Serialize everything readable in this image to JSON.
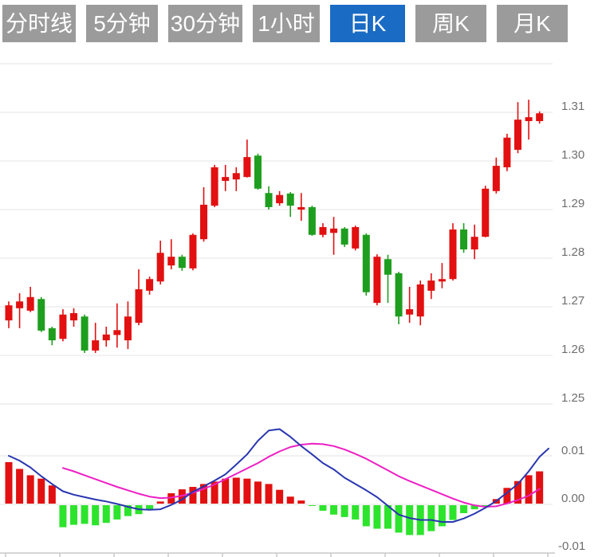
{
  "tabs": [
    {
      "id": "timeshare",
      "label": "分时线",
      "active": false
    },
    {
      "id": "5min",
      "label": "5分钟",
      "active": false
    },
    {
      "id": "30min",
      "label": "30分钟",
      "active": false
    },
    {
      "id": "1hour",
      "label": "1小时",
      "active": false
    },
    {
      "id": "daily",
      "label": "日K",
      "active": true
    },
    {
      "id": "weekly",
      "label": "周K",
      "active": false
    },
    {
      "id": "monthly",
      "label": "月K",
      "active": false
    }
  ],
  "colors": {
    "up_red": "#e21010",
    "down_green": "#1e9e1e",
    "macd_bar_up": "#e21010",
    "macd_bar_down": "#2ce42c",
    "dif_line_blue": "#2936b0",
    "dea_line_magenta": "#ed1fc4",
    "grid": "#e3e3e3",
    "axis_line": "#c8c8c8",
    "axis_text": "#6e6e6e",
    "tab_bg": "#9b9b9b",
    "tab_active_bg": "#1a6bc4",
    "tab_text": "#ffffff"
  },
  "chart_data": {
    "type": "candlestick",
    "title": "",
    "price_axis": {
      "ticks": [
        "1.31",
        "1.30",
        "1.29",
        "1.28",
        "1.27",
        "1.26",
        "1.25"
      ],
      "min": 1.25,
      "max": 1.32,
      "grid": true
    },
    "macd_axis": {
      "ticks": [
        "0.01",
        "0.00",
        "-0.01"
      ],
      "min": -0.01,
      "max": 0.01,
      "grid": true
    },
    "candles_ohlc": [
      [
        1.2672,
        1.2711,
        1.2656,
        1.2703
      ],
      [
        1.2697,
        1.2728,
        1.2656,
        1.2711
      ],
      [
        1.2692,
        1.2741,
        1.2689,
        1.272
      ],
      [
        1.2716,
        1.272,
        1.2648,
        1.2651
      ],
      [
        1.2656,
        1.2659,
        1.2621,
        1.2631
      ],
      [
        1.2634,
        1.2695,
        1.2629,
        1.2684
      ],
      [
        1.2672,
        1.2697,
        1.2659,
        1.2687
      ],
      [
        1.268,
        1.2684,
        1.2605,
        1.261
      ],
      [
        1.261,
        1.2667,
        1.2605,
        1.2631
      ],
      [
        1.2631,
        1.2659,
        1.2618,
        1.2643
      ],
      [
        1.2642,
        1.2707,
        1.2616,
        1.2652
      ],
      [
        1.2631,
        1.2711,
        1.2613,
        1.268
      ],
      [
        1.2667,
        1.2777,
        1.2662,
        1.2736
      ],
      [
        1.2733,
        1.2762,
        1.2725,
        1.2757
      ],
      [
        1.2752,
        1.2836,
        1.2746,
        1.2811
      ],
      [
        1.2785,
        1.2839,
        1.2777,
        1.2803
      ],
      [
        1.2803,
        1.2807,
        1.2774,
        1.278
      ],
      [
        1.2779,
        1.2851,
        1.2775,
        1.2848
      ],
      [
        1.2839,
        1.2946,
        1.2834,
        1.291
      ],
      [
        1.2908,
        1.2992,
        1.2905,
        1.2987
      ],
      [
        1.2959,
        1.2992,
        1.2938,
        1.2967
      ],
      [
        1.2962,
        1.2987,
        1.2938,
        1.2975
      ],
      [
        1.2967,
        1.3044,
        1.2966,
        1.3008
      ],
      [
        1.3011,
        1.3015,
        1.2941,
        1.2943
      ],
      [
        1.2934,
        1.2948,
        1.29,
        1.2905
      ],
      [
        1.2913,
        1.2938,
        1.2908,
        1.293
      ],
      [
        1.2933,
        1.2936,
        1.2885,
        1.2908
      ],
      [
        1.29,
        1.2934,
        1.2877,
        1.2905
      ],
      [
        1.2905,
        1.2908,
        1.2846,
        1.2848
      ],
      [
        1.2848,
        1.2872,
        1.2843,
        1.2864
      ],
      [
        1.2852,
        1.2885,
        1.2807,
        1.2861
      ],
      [
        1.2861,
        1.2864,
        1.2823,
        1.2828
      ],
      [
        1.282,
        1.2867,
        1.2816,
        1.2864
      ],
      [
        1.2848,
        1.2851,
        1.2723,
        1.273
      ],
      [
        1.2708,
        1.2808,
        1.2703,
        1.2803
      ],
      [
        1.2798,
        1.2807,
        1.2708,
        1.2766
      ],
      [
        1.2769,
        1.2772,
        1.2664,
        1.268
      ],
      [
        1.2684,
        1.2741,
        1.2667,
        1.2695
      ],
      [
        1.268,
        1.2754,
        1.2662,
        1.2746
      ],
      [
        1.2733,
        1.2769,
        1.2716,
        1.2754
      ],
      [
        1.2752,
        1.279,
        1.2738,
        1.2757
      ],
      [
        1.2757,
        1.2872,
        1.2754,
        1.2859
      ],
      [
        1.2859,
        1.2872,
        1.2811,
        1.2818
      ],
      [
        1.2818,
        1.2869,
        1.2798,
        1.2844
      ],
      [
        1.2844,
        1.2949,
        1.2843,
        1.2943
      ],
      [
        1.2938,
        1.3007,
        1.2933,
        1.299
      ],
      [
        1.2987,
        1.3056,
        1.2979,
        1.3048
      ],
      [
        1.3023,
        1.3121,
        1.3016,
        1.3085
      ],
      [
        1.3082,
        1.3126,
        1.3044,
        1.309
      ],
      [
        1.3082,
        1.3102,
        1.3077,
        1.3098
      ]
    ],
    "macd": {
      "hist": [
        0.0087,
        0.0073,
        0.006,
        0.0053,
        0.0039,
        -0.0047,
        -0.0042,
        -0.004,
        -0.0043,
        -0.0038,
        -0.0031,
        -0.0024,
        -0.002,
        -0.001,
        0.0006,
        0.0023,
        0.0031,
        0.0036,
        0.0042,
        0.0047,
        0.0053,
        0.0055,
        0.0053,
        0.0047,
        0.0042,
        0.003,
        0.0016,
        0.0008,
        -0.0002,
        -0.0013,
        -0.0021,
        -0.0026,
        -0.0031,
        -0.0045,
        -0.005,
        -0.005,
        -0.0058,
        -0.0063,
        -0.0063,
        -0.0055,
        -0.0045,
        -0.0032,
        -0.0018,
        -0.001,
        -0.0004,
        0.0011,
        0.0034,
        0.0048,
        0.006,
        0.0068
      ],
      "dif": [
        0.01,
        0.009,
        0.0076,
        0.0058,
        0.0042,
        0.0027,
        0.002,
        0.0015,
        0.001,
        0.0006,
        0.0001,
        -0.0005,
        -0.001,
        -0.0011,
        -0.001,
        -0.0001,
        0.001,
        0.0026,
        0.0037,
        0.0049,
        0.0062,
        0.0082,
        0.0103,
        0.0131,
        0.0152,
        0.0155,
        0.0139,
        0.012,
        0.0103,
        0.0085,
        0.0072,
        0.0055,
        0.0042,
        0.0029,
        0.0015,
        -0.0003,
        -0.0021,
        -0.0028,
        -0.0032,
        -0.0032,
        -0.0036,
        -0.0036,
        -0.0029,
        -0.0019,
        -0.0007,
        0.0007,
        0.0024,
        0.0042,
        0.0068,
        0.0098
      ],
      "dif_tail": 0.0115,
      "dea": [
        null,
        null,
        null,
        null,
        null,
        0.0075,
        0.0068,
        0.006,
        0.0052,
        0.0044,
        0.0036,
        0.0029,
        0.0022,
        0.0016,
        0.0013,
        0.0014,
        0.0018,
        0.0024,
        0.0032,
        0.0041,
        0.0052,
        0.0063,
        0.0074,
        0.0085,
        0.0098,
        0.0109,
        0.0118,
        0.0123,
        0.0125,
        0.0124,
        0.012,
        0.0113,
        0.0104,
        0.0094,
        0.0082,
        0.007,
        0.0058,
        0.0048,
        0.0039,
        0.003,
        0.0021,
        0.0012,
        0.0004,
        -0.0002,
        -0.0005,
        -0.0004,
        0.0002,
        0.0009,
        0.0018,
        0.0032
      ]
    },
    "layout": {
      "legend": false,
      "up_means": "close>open (red, Chinese convention)",
      "panels": [
        "price",
        "macd"
      ]
    }
  }
}
